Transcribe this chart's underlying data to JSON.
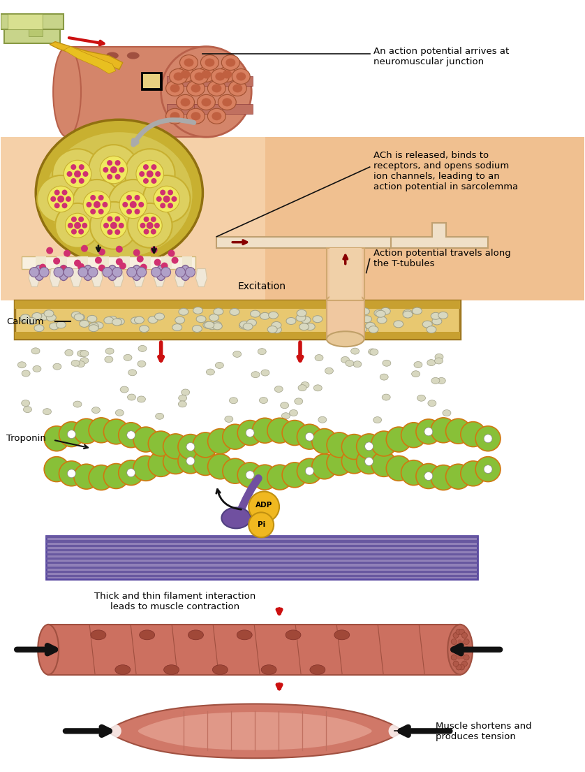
{
  "background_color": "#ffffff",
  "colors": {
    "muscle_salmon": "#d4856a",
    "muscle_dark": "#b8604a",
    "muscle_light": "#e8a080",
    "nerve_green": "#c8d48a",
    "nerve_green2": "#b8c870",
    "nerve_yellow": "#e8b820",
    "synapse_bg": "#f5d0a8",
    "synapse_bg2": "#f0c090",
    "vesicle_yellow": "#c8b030",
    "vesicle_inner": "#d4c450",
    "vesicle_fill": "#ddd060",
    "vesicle_dot": "#d03070",
    "sr_gold": "#c8a030",
    "sr_light": "#e8c870",
    "sr_dark": "#a07820",
    "calcium_oval": "#d8d8c0",
    "calcium_edge": "#a0a088",
    "actin_green": "#88c038",
    "actin_orange": "#d07810",
    "myosin_purple": "#7050a0",
    "myosin_dark": "#504080",
    "thick_bg": "#9080b8",
    "thick_stripe": "#6858a0",
    "adp_yellow": "#f0b820",
    "red_arrow": "#cc1010",
    "black": "#111111",
    "sarcolemma_bg": "#f0c8a0",
    "ttubule_outer": "#d0a870",
    "ttubule_inner": "#f0d0a8",
    "muscle_cyl": "#cc7060",
    "muscle_cyl_dark": "#a05040",
    "muscle_cyl_light": "#dd8878",
    "spindle_outer": "#d07868",
    "spindle_inner": "#e09888",
    "white": "#ffffff",
    "gray_arrow": "#aaaaaa"
  },
  "texts": {
    "ap1": "An action potential arrives at\nneuromuscular junction",
    "ach": "ACh is released, binds to\nreceptors, and opens sodium\nion channels, leading to an\naction potential in sarcolemma",
    "ttubule": "Action potential travels along\nthe T-tubules",
    "excitation": "Excitation",
    "calcium": "Calcium",
    "troponin": "Troponin",
    "filament": "Thick and thin filament interaction\nleads to muscle contraction",
    "muscle": "Muscle shortens and\nproduces tension",
    "adp": "ADP",
    "pi": "Pi"
  }
}
